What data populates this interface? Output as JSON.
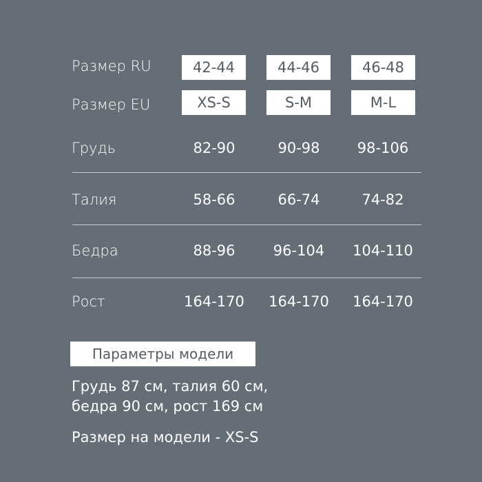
{
  "header_rows": [
    {
      "label": "Размер RU",
      "values": [
        "42-44",
        "44-46",
        "46-48"
      ]
    },
    {
      "label": "Размер EU",
      "values": [
        "XS-S",
        "S-M",
        "M-L"
      ]
    }
  ],
  "rows": [
    {
      "label": "Грудь",
      "values": [
        "82-90",
        "90-98",
        "98-106"
      ]
    },
    {
      "label": "Талия",
      "values": [
        "58-66",
        "66-74",
        "74-82"
      ]
    },
    {
      "label": "Бедра",
      "values": [
        "88-96",
        "96-104",
        "104-110"
      ]
    },
    {
      "label": "Рост",
      "values": [
        "164-170",
        "164-170",
        "164-170"
      ]
    }
  ],
  "model": {
    "title": "Параметры модели",
    "line1": "Грудь 87 см,  талия 60 см,",
    "line2": "бедра 90 см, рост 169 см",
    "size": "Размер на модели - XS-S"
  },
  "colors": {
    "background": "#656d76",
    "box": "#ffffff",
    "box_text": "#555c63"
  }
}
